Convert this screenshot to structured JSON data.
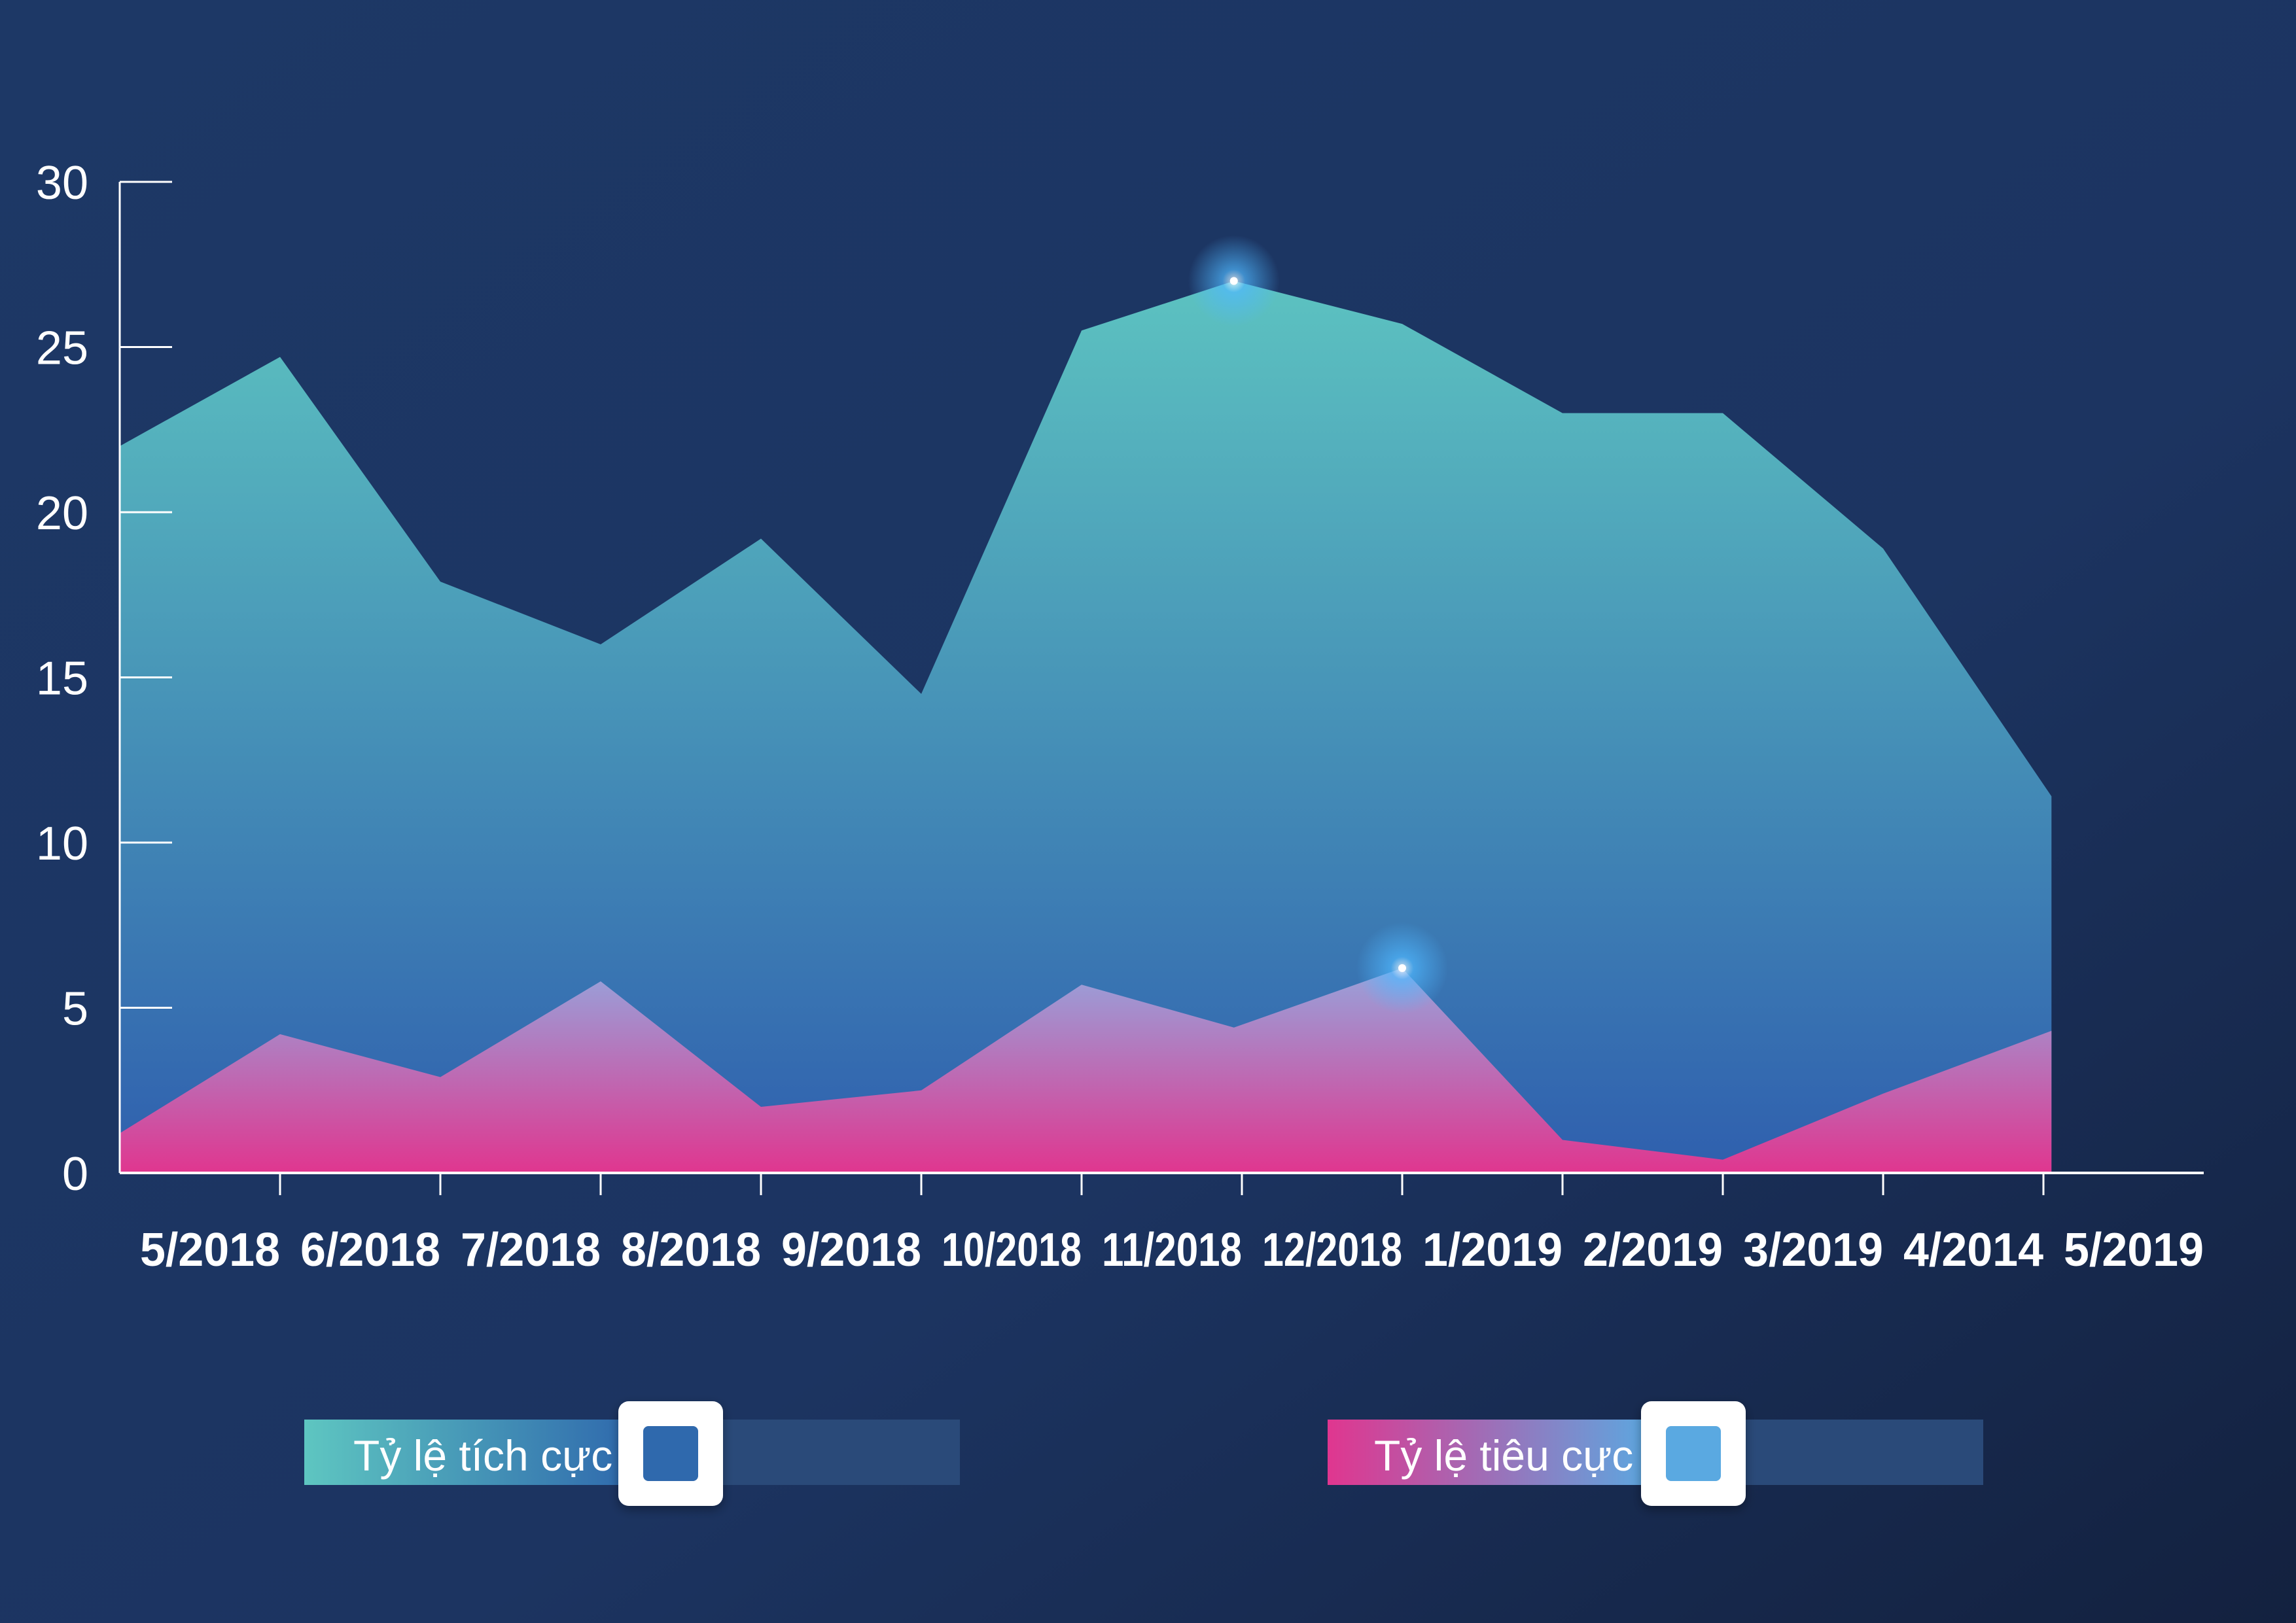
{
  "chart_data": {
    "type": "area",
    "title": "",
    "xlabel": "",
    "ylabel": "",
    "ylim": [
      0,
      30
    ],
    "yticks": [
      0,
      5,
      10,
      15,
      20,
      25,
      30
    ],
    "categories": [
      "5/2018",
      "6/2018",
      "7/2018",
      "8/2018",
      "9/2018",
      "10/2018",
      "11/2018",
      "12/2018",
      "1/2019",
      "2/2019",
      "3/2019",
      "4/2014",
      "5/2019"
    ],
    "x": [
      0,
      1,
      2,
      3,
      4,
      5,
      6,
      6.95,
      8,
      9,
      10,
      11,
      12.05
    ],
    "series": [
      {
        "name": "Tỷ lệ tích cực",
        "x": [
          0,
          1,
          2,
          3,
          4,
          5,
          6,
          6.95,
          8,
          9,
          10,
          11,
          12.05,
          12.05
        ],
        "values": [
          22,
          24.7,
          17.9,
          16,
          19.2,
          14.5,
          25.5,
          27,
          25.7,
          23,
          23,
          18.9,
          11.4,
          4.3
        ],
        "color_top": "#5ec6c1",
        "color_bottom": "#2f5fae"
      },
      {
        "name": "Tỷ lệ tiêu cực",
        "x": [
          0,
          1,
          2,
          3,
          4,
          5,
          6,
          6.95,
          8,
          9,
          10,
          11,
          12.05
        ],
        "values": [
          1.2,
          4.2,
          2.9,
          5.8,
          2.0,
          2.5,
          5.7,
          4.4,
          6.2,
          1.0,
          0.4,
          2.4,
          4.3
        ],
        "color_top": "#93a9df",
        "color_bottom": "#e0368f"
      }
    ],
    "highlights": [
      {
        "series": 0,
        "index": 7
      },
      {
        "series": 1,
        "index": 8
      }
    ],
    "legend": {
      "position": "bottom",
      "items": [
        {
          "label": "Tỷ lệ tích cực",
          "swatch": "#2f69ad"
        },
        {
          "label": "Tỷ lệ tiêu cực",
          "swatch": "#5aa9e1"
        }
      ]
    },
    "colors": {
      "background": "#1c3461",
      "axis": "#ffffff",
      "legend_track": "#2a4a79",
      "legend_box": "#ffffff",
      "glow": "#4fb8ff"
    }
  }
}
